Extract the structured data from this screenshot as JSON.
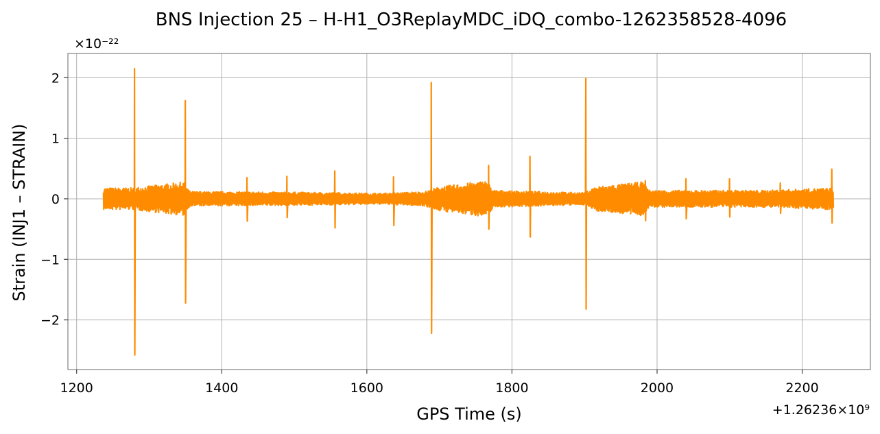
{
  "chart_data": {
    "type": "line",
    "title": "BNS Injection 25 – H-H1_O3ReplayMDC_iDQ_combo-1262358528-4096",
    "xlabel": "GPS Time (s)",
    "ylabel": "Strain (INJ1 – STRAIN)",
    "x_offset_text": "+1.26236×10⁹",
    "y_scale_text": "×10⁻²²",
    "xlim": [
      1188,
      2294
    ],
    "ylim": [
      -2.82,
      2.4
    ],
    "xticks": [
      1200,
      1400,
      1600,
      1800,
      2000,
      2200
    ],
    "xtick_labels": [
      "1200",
      "1400",
      "1600",
      "1800",
      "2000",
      "2200"
    ],
    "yticks": [
      -2,
      -1,
      0,
      1,
      2
    ],
    "ytick_labels": [
      "−2",
      "−1",
      "0",
      "1",
      "2"
    ],
    "grid": true,
    "color": "#ff8c00",
    "series": [
      {
        "x_range": [
          1237,
          2243
        ],
        "baseline_envelope": [
          {
            "x": 1237,
            "amp": 0.18
          },
          {
            "x": 1278,
            "amp": 0.18
          },
          {
            "x": 1290,
            "amp": 0.2
          },
          {
            "x": 1348,
            "amp": 0.28
          },
          {
            "x": 1356,
            "amp": 0.12
          },
          {
            "x": 1500,
            "amp": 0.11
          },
          {
            "x": 1620,
            "amp": 0.09
          },
          {
            "x": 1680,
            "amp": 0.12
          },
          {
            "x": 1700,
            "amp": 0.2
          },
          {
            "x": 1765,
            "amp": 0.3
          },
          {
            "x": 1775,
            "amp": 0.14
          },
          {
            "x": 1900,
            "amp": 0.1
          },
          {
            "x": 1915,
            "amp": 0.2
          },
          {
            "x": 1980,
            "amp": 0.28
          },
          {
            "x": 1990,
            "amp": 0.14
          },
          {
            "x": 2150,
            "amp": 0.14
          },
          {
            "x": 2243,
            "amp": 0.18
          }
        ],
        "peaks": [
          {
            "x": 1280,
            "max": 2.15,
            "min": -2.58
          },
          {
            "x": 1350,
            "max": 1.62,
            "min": -1.72
          },
          {
            "x": 1435,
            "max": 0.35,
            "min": -0.37
          },
          {
            "x": 1490,
            "max": 0.37,
            "min": -0.31
          },
          {
            "x": 1556,
            "max": 0.46,
            "min": -0.48
          },
          {
            "x": 1637,
            "max": 0.36,
            "min": -0.44
          },
          {
            "x": 1689,
            "max": 1.92,
            "min": -2.22
          },
          {
            "x": 1768,
            "max": 0.55,
            "min": -0.5
          },
          {
            "x": 1825,
            "max": 0.7,
            "min": -0.63
          },
          {
            "x": 1902,
            "max": 1.99,
            "min": -1.82
          },
          {
            "x": 1984,
            "max": 0.3,
            "min": -0.36
          },
          {
            "x": 2040,
            "max": 0.33,
            "min": -0.33
          },
          {
            "x": 2100,
            "max": 0.33,
            "min": -0.3
          },
          {
            "x": 2170,
            "max": 0.26,
            "min": -0.24
          },
          {
            "x": 2241,
            "max": 0.49,
            "min": -0.4
          }
        ]
      }
    ]
  }
}
